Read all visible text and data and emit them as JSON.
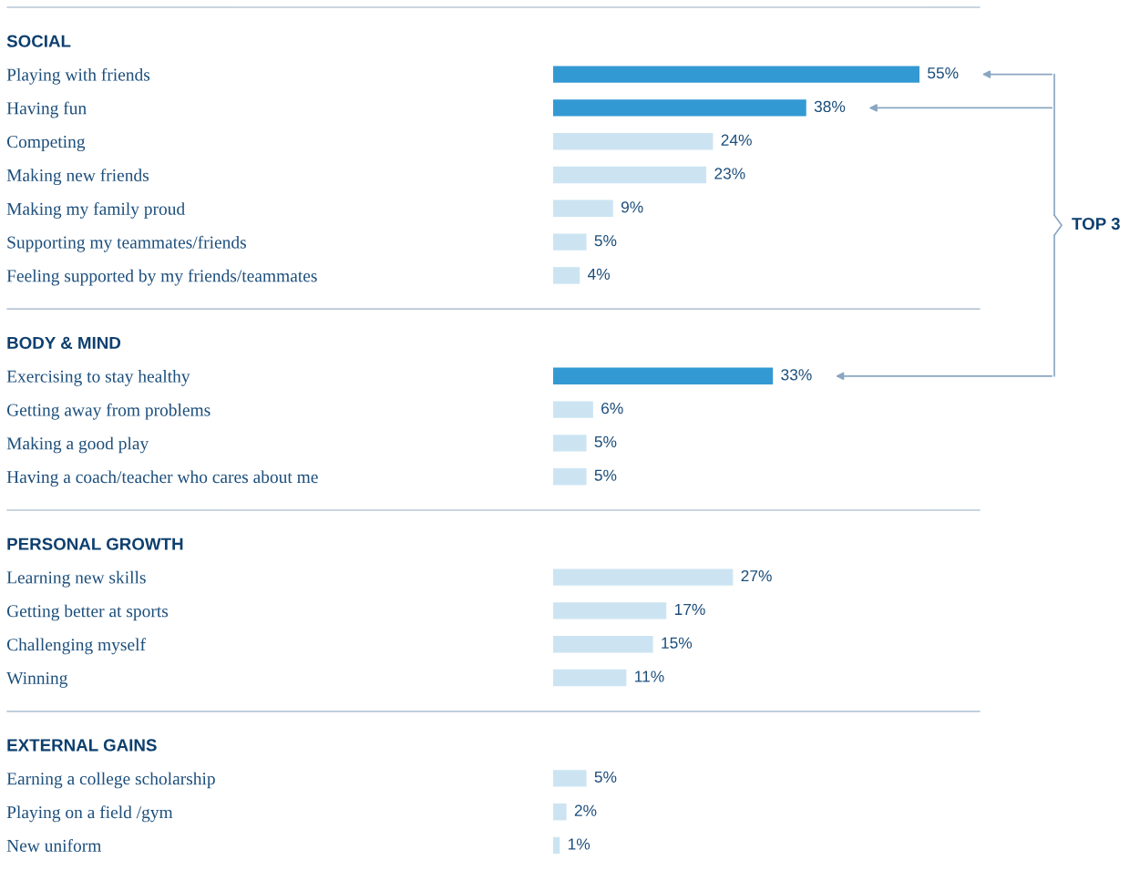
{
  "chart_data": {
    "type": "bar",
    "orientation": "horizontal",
    "categories": [
      null,
      "SOCIAL",
      "Playing with friends",
      "Having fun",
      "Competing",
      "Making new friends",
      "Making my family proud",
      "Supporting my teammates/friends",
      "Feeling supported by my friends/teammates",
      null,
      "BODY & MIND",
      "Exercising to stay healthy",
      "Getting away from problems",
      "Making a good play",
      "Having a coach/teacher who cares about me",
      null,
      "PERSONAL GROWTH",
      "Learning new skills",
      "Getting better at sports",
      "Challenging myself",
      "Winning",
      null,
      "EXTERNAL GAINS",
      "Earning a college scholarship",
      "Playing on a field /gym",
      "New uniform"
    ],
    "values": [
      null,
      null,
      55,
      38,
      24,
      23,
      9,
      5,
      4,
      null,
      null,
      33,
      6,
      5,
      5,
      null,
      null,
      27,
      17,
      15,
      11,
      null,
      null,
      5,
      2,
      1
    ],
    "value_labels": [
      null,
      null,
      "55%",
      "38%",
      "24%",
      "23%",
      "9%",
      "5%",
      "4%",
      null,
      null,
      "33%",
      "6%",
      "5%",
      "5%",
      null,
      null,
      "27%",
      "17%",
      "15%",
      "11%",
      null,
      null,
      "5%",
      "2%",
      "1%"
    ],
    "colors": [
      null,
      null,
      "#3399d3",
      "#3399d3",
      "#cce4f2",
      "#cce4f2",
      "#cce4f2",
      "#cce4f2",
      "#cce4f2",
      null,
      null,
      "#3399d3",
      "#cce4f2",
      "#cce4f2",
      "#cce4f2",
      null,
      null,
      "#cce4f2",
      "#cce4f2",
      "#cce4f2",
      "#cce4f2",
      null,
      null,
      "#cce4f2",
      "#cce4f2",
      "#cce4f2"
    ],
    "annotations": [
      "TOP 3"
    ]
  }
}
